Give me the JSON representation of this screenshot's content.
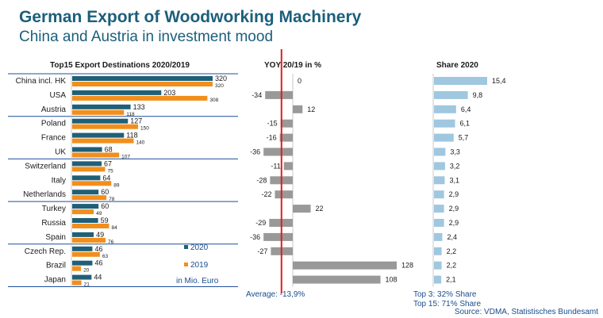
{
  "header": {
    "title": "German Export of Woodworking Machinery",
    "subtitle": "China and Austria in investment mood"
  },
  "footer": {
    "source": "Source: VDMA, Statistisches Bundesamt"
  },
  "colors": {
    "title": "#1b5f7a",
    "bar_2020": "#1f5f78",
    "bar_2019": "#f28e1b",
    "bar_yoy": "#999999",
    "bar_share": "#9fc7e0",
    "average_line": "#e11d1d",
    "separator": "#1f4e9c"
  },
  "chart_data": [
    {
      "type": "bar",
      "orientation": "horizontal",
      "title": "Top15 Export Destinations 2020/2019",
      "categories": [
        "China incl. HK",
        "USA",
        "Austria",
        "Poland",
        "France",
        "UK",
        "Switzerland",
        "Italy",
        "Netherlands",
        "Turkey",
        "Russia",
        "Spain",
        "Czech Rep.",
        "Brazil",
        "Japan"
      ],
      "series": [
        {
          "name": "2020",
          "values": [
            320,
            203,
            133,
            127,
            118,
            68,
            67,
            64,
            60,
            60,
            59,
            49,
            46,
            46,
            44
          ]
        },
        {
          "name": "2019",
          "values": [
            320,
            308,
            118,
            150,
            140,
            107,
            75,
            89,
            78,
            49,
            84,
            76,
            63,
            20,
            21
          ]
        }
      ],
      "unit_note": "in Mio. Euro",
      "legend_position": "bottom-right"
    },
    {
      "type": "bar",
      "orientation": "horizontal",
      "title": "YOY 20/19 in %",
      "categories": [
        "China incl. HK",
        "USA",
        "Austria",
        "Poland",
        "France",
        "UK",
        "Switzerland",
        "Italy",
        "Netherlands",
        "Turkey",
        "Russia",
        "Spain",
        "Czech Rep.",
        "Brazil",
        "Japan"
      ],
      "values": [
        0,
        -34,
        12,
        -15,
        -16,
        -36,
        -11,
        -28,
        -22,
        22,
        -29,
        -36,
        -27,
        128,
        108
      ],
      "reference_line": {
        "label": "Average: -13,9%",
        "value": -13.9
      }
    },
    {
      "type": "bar",
      "orientation": "horizontal",
      "title": "Share  2020",
      "categories": [
        "China incl. HK",
        "USA",
        "Austria",
        "Poland",
        "France",
        "UK",
        "Switzerland",
        "Italy",
        "Netherlands",
        "Turkey",
        "Russia",
        "Spain",
        "Czech Rep.",
        "Brazil",
        "Japan"
      ],
      "values": [
        "15,4",
        "9,8",
        "6,4",
        "6,1",
        "5,7",
        "3,3",
        "3,2",
        "3,1",
        "2,9",
        "2,9",
        "2,9",
        "2,4",
        "2,2",
        "2,2",
        "2,1"
      ],
      "notes": [
        "Top 3: 32% Share",
        "Top 15: 71% Share"
      ]
    }
  ]
}
